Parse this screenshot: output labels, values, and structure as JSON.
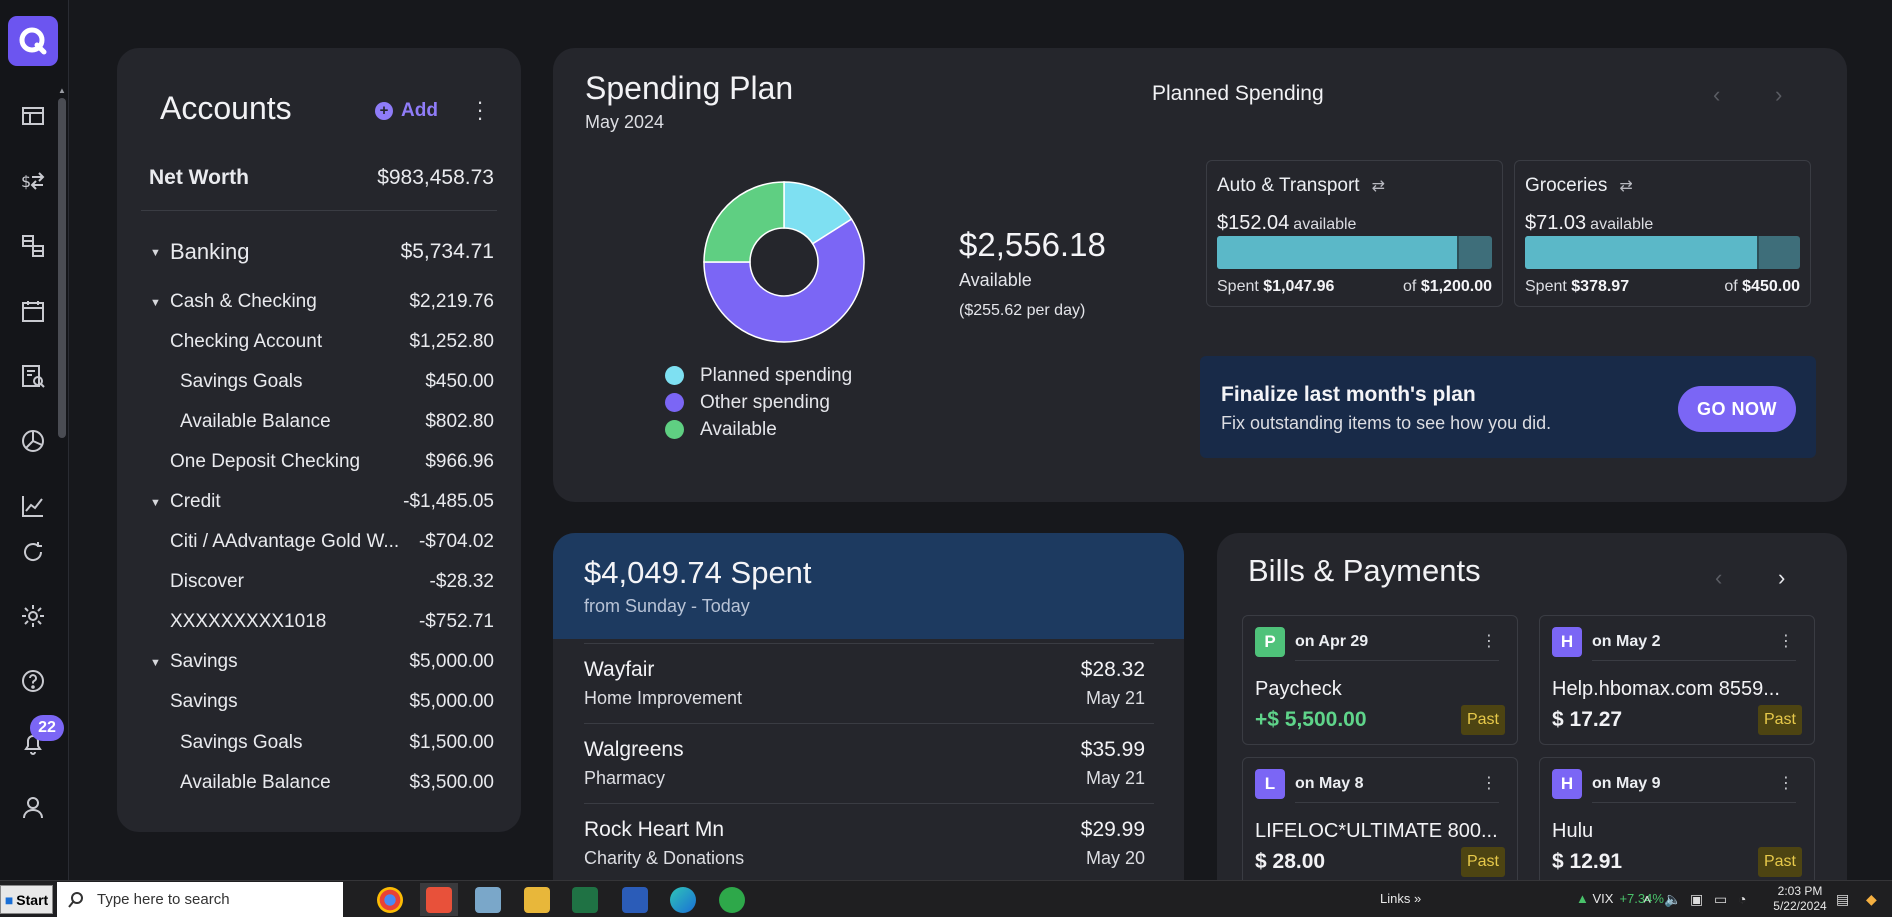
{
  "rail": {
    "notifications_count": "22"
  },
  "accounts": {
    "title": "Accounts",
    "add_label": "Add",
    "net_worth": {
      "label": "Net Worth",
      "value": "$983,458.73"
    },
    "rows": [
      {
        "label": "Banking",
        "value": "$5,734.71"
      },
      {
        "label": "Cash & Checking",
        "value": "$2,219.76"
      },
      {
        "label": "Checking Account",
        "value": "$1,252.80"
      },
      {
        "label": "Savings Goals",
        "value": "$450.00"
      },
      {
        "label": "Available Balance",
        "value": "$802.80"
      },
      {
        "label": "One Deposit Checking",
        "value": "$966.96"
      },
      {
        "label": "Credit",
        "value": "-$1,485.05"
      },
      {
        "label": "Citi / AAdvantage Gold W...",
        "value": "-$704.02"
      },
      {
        "label": "Discover",
        "value": "-$28.32"
      },
      {
        "label": "XXXXXXXXX1018",
        "value": "-$752.71"
      },
      {
        "label": "Savings",
        "value": "$5,000.00"
      },
      {
        "label": "Savings",
        "value": "$5,000.00"
      },
      {
        "label": "Savings Goals",
        "value": "$1,500.00"
      },
      {
        "label": "Available Balance",
        "value": "$3,500.00"
      }
    ]
  },
  "plan": {
    "title": "Spending Plan",
    "month": "May 2024",
    "planned_title": "Planned Spending",
    "available_amount": "$2,556.18",
    "available_label": "Available",
    "per_day": "($255.62 per day)",
    "legend": [
      {
        "label": "Planned spending",
        "color": "#7ee0f2"
      },
      {
        "label": "Other spending",
        "color": "#7b66f5"
      },
      {
        "label": "Available",
        "color": "#5fcf82"
      }
    ],
    "donut_fractions": [
      0.16,
      0.59,
      0.25
    ],
    "categories": [
      {
        "name": "Auto & Transport",
        "available": "$152.04",
        "available_suffix": "available",
        "spent_label": "Spent",
        "spent": "$1,047.96",
        "of_label": "of",
        "of": "$1,200.00",
        "spent_fraction": 0.873
      },
      {
        "name": "Groceries",
        "available": "$71.03",
        "available_suffix": "available",
        "spent_label": "Spent",
        "spent": "$378.97",
        "of_label": "of",
        "of": "$450.00",
        "spent_fraction": 0.842
      }
    ],
    "finalize_title": "Finalize last month's plan",
    "finalize_sub": "Fix outstanding items to see how you did.",
    "go_now": "GO NOW"
  },
  "spent": {
    "title": "$4,049.74 Spent",
    "subtitle": "from Sunday - Today",
    "transactions": [
      {
        "merchant": "Wayfair",
        "category": "Home Improvement",
        "amount": "$28.32",
        "date": "May 21"
      },
      {
        "merchant": "Walgreens",
        "category": "Pharmacy",
        "amount": "$35.99",
        "date": "May 21"
      },
      {
        "merchant": "Rock Heart Mn",
        "category": "Charity & Donations",
        "amount": "$29.99",
        "date": "May 20"
      }
    ]
  },
  "bills": {
    "title": "Bills & Payments",
    "items": [
      {
        "initial": "P",
        "color": "#4fc27a",
        "date": "on Apr 29",
        "name": "Paycheck",
        "amount": "+$ 5,500.00",
        "status": "Past"
      },
      {
        "initial": "H",
        "color": "#7b66f5",
        "date": "on May 2",
        "name": "Help.hbomax.com 8559...",
        "amount": "$ 17.27",
        "status": "Past"
      },
      {
        "initial": "L",
        "color": "#7b66f5",
        "date": "on May 8",
        "name": "LIFELOC*ULTIMATE 800...",
        "amount": "$ 28.00",
        "status": "Past"
      },
      {
        "initial": "H",
        "color": "#7b66f5",
        "date": "on May 9",
        "name": "Hulu",
        "amount": "$ 12.91",
        "status": "Past"
      }
    ]
  },
  "taskbar": {
    "start": "Start",
    "search_placeholder": "Type here to search",
    "links": "Links",
    "vix_label": "VIX",
    "vix_change": "+7.34%",
    "time": "2:03 PM",
    "date": "5/22/2024"
  }
}
